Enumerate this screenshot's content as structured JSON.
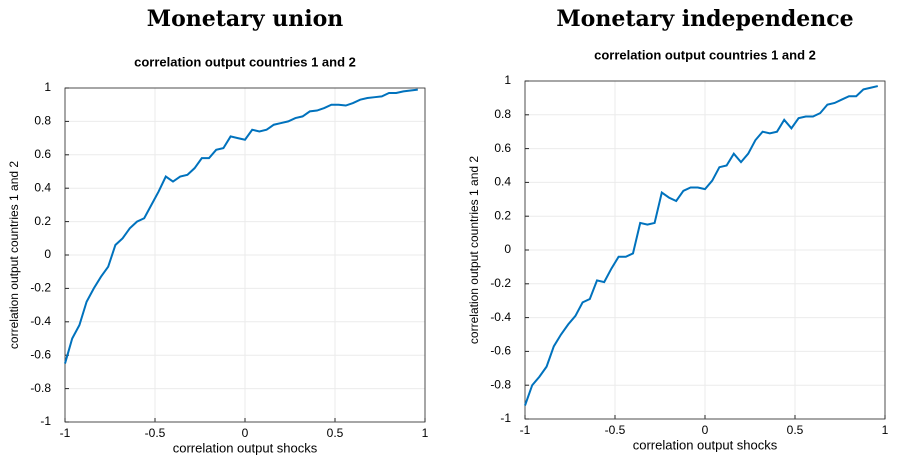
{
  "chart_data": [
    {
      "type": "line",
      "title": "Monetary union",
      "subtitle": "correlation output countries 1 and 2",
      "xlabel": "correlation output shocks",
      "ylabel": "correlation output countries 1 and 2",
      "x": [
        -1,
        -0.96,
        -0.92,
        -0.88,
        -0.84,
        -0.8,
        -0.76,
        -0.72,
        -0.68,
        -0.64,
        -0.6,
        -0.56,
        -0.52,
        -0.48,
        -0.44,
        -0.4,
        -0.36,
        -0.32,
        -0.28,
        -0.24,
        -0.2,
        -0.16,
        -0.12,
        -0.08,
        -0.04,
        0,
        0.04,
        0.08,
        0.12,
        0.16,
        0.2,
        0.24,
        0.28,
        0.32,
        0.36,
        0.4,
        0.44,
        0.48,
        0.52,
        0.56,
        0.6,
        0.64,
        0.68,
        0.72,
        0.76,
        0.8,
        0.84,
        0.88,
        0.92,
        0.96
      ],
      "values": [
        -0.65,
        -0.5,
        -0.42,
        -0.28,
        -0.2,
        -0.13,
        -0.07,
        0.06,
        0.1,
        0.16,
        0.2,
        0.22,
        0.3,
        0.38,
        0.47,
        0.44,
        0.47,
        0.48,
        0.52,
        0.58,
        0.58,
        0.63,
        0.64,
        0.71,
        0.7,
        0.69,
        0.75,
        0.74,
        0.75,
        0.78,
        0.79,
        0.8,
        0.82,
        0.83,
        0.86,
        0.865,
        0.88,
        0.9,
        0.9,
        0.895,
        0.91,
        0.93,
        0.94,
        0.945,
        0.95,
        0.97,
        0.97,
        0.98,
        0.985,
        0.99
      ],
      "color": "#0072bd",
      "xlim": [
        -1,
        1
      ],
      "xticks": [
        -1,
        -0.5,
        0,
        0.5,
        1
      ],
      "ylim": [
        -1,
        1
      ],
      "yticks": [
        -1,
        -0.8,
        -0.6,
        -0.4,
        -0.2,
        0,
        0.2,
        0.4,
        0.6,
        0.8,
        1
      ],
      "grid": true
    },
    {
      "type": "line",
      "title": "Monetary independence",
      "subtitle": "correlation output countries 1 and 2",
      "xlabel": "correlation output shocks",
      "ylabel": "correlation output countries 1 and 2",
      "x": [
        -1,
        -0.96,
        -0.92,
        -0.88,
        -0.84,
        -0.8,
        -0.76,
        -0.72,
        -0.68,
        -0.64,
        -0.6,
        -0.56,
        -0.52,
        -0.48,
        -0.44,
        -0.4,
        -0.36,
        -0.32,
        -0.28,
        -0.24,
        -0.2,
        -0.16,
        -0.12,
        -0.08,
        -0.04,
        0,
        0.04,
        0.08,
        0.12,
        0.16,
        0.2,
        0.24,
        0.28,
        0.32,
        0.36,
        0.4,
        0.44,
        0.48,
        0.52,
        0.56,
        0.6,
        0.64,
        0.68,
        0.72,
        0.76,
        0.8,
        0.84,
        0.88,
        0.92,
        0.96
      ],
      "values": [
        -0.92,
        -0.8,
        -0.75,
        -0.69,
        -0.57,
        -0.5,
        -0.44,
        -0.39,
        -0.31,
        -0.29,
        -0.18,
        -0.19,
        -0.11,
        -0.04,
        -0.04,
        -0.02,
        0.16,
        0.15,
        0.16,
        0.34,
        0.31,
        0.29,
        0.35,
        0.37,
        0.37,
        0.36,
        0.41,
        0.49,
        0.5,
        0.57,
        0.52,
        0.57,
        0.65,
        0.7,
        0.69,
        0.7,
        0.77,
        0.72,
        0.78,
        0.79,
        0.79,
        0.81,
        0.86,
        0.87,
        0.89,
        0.91,
        0.91,
        0.95,
        0.96,
        0.97
      ],
      "color": "#0072bd",
      "xlim": [
        -1,
        1
      ],
      "xticks": [
        -1,
        -0.5,
        0,
        0.5,
        1
      ],
      "ylim": [
        -1,
        1
      ],
      "yticks": [
        -1,
        -0.8,
        -0.6,
        -0.4,
        -0.2,
        0,
        0.2,
        0.4,
        0.6,
        0.8,
        1
      ],
      "grid": true
    }
  ]
}
